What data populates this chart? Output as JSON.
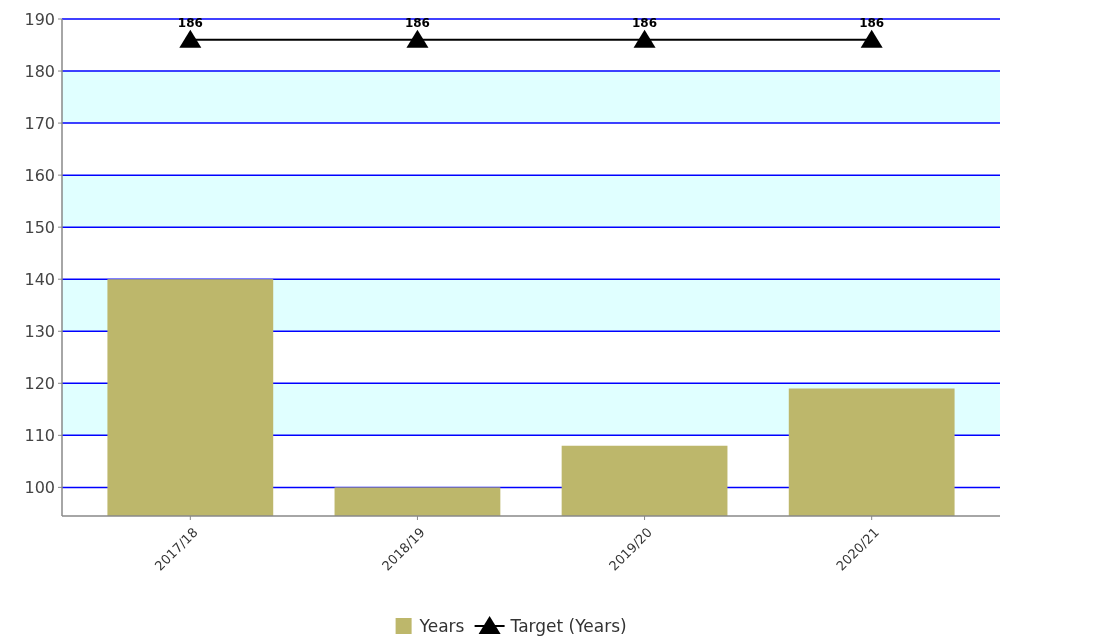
{
  "chart_data": {
    "type": "bar",
    "categories": [
      "2017/18",
      "2018/19",
      "2019/20",
      "2020/21"
    ],
    "series": [
      {
        "name": "Years",
        "color": "#bdb76b",
        "values": [
          140,
          100,
          108,
          119
        ]
      },
      {
        "name": "Target (Years)",
        "type": "line",
        "color": "#000000",
        "marker": "triangle",
        "values": [
          186,
          186,
          186,
          186
        ],
        "value_labels": [
          "186",
          "186",
          "186",
          "186"
        ]
      }
    ],
    "ylim": [
      94.5,
      190
    ],
    "yticks": [
      100,
      110,
      120,
      130,
      140,
      150,
      160,
      170,
      180,
      190
    ],
    "grid": "y",
    "legend": "bottom",
    "bands": [
      {
        "axis": "y",
        "from": 110,
        "to": 120,
        "color": "#e0ffff"
      },
      {
        "axis": "y",
        "from": 130,
        "to": 140,
        "color": "#e0ffff"
      },
      {
        "axis": "y",
        "from": 150,
        "to": 160,
        "color": "#e0ffff"
      },
      {
        "axis": "y",
        "from": 170,
        "to": 180,
        "color": "#e0ffff"
      }
    ]
  }
}
